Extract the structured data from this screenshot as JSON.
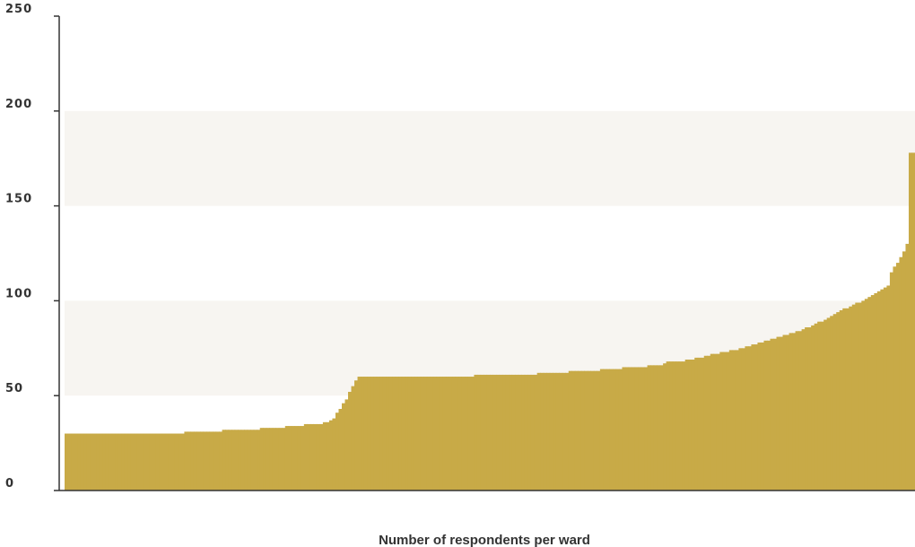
{
  "chart_data": {
    "type": "area",
    "title": "",
    "xlabel": "Number of respondents per ward",
    "ylabel": "",
    "ylim": [
      0,
      250
    ],
    "yticks": [
      "0",
      "50",
      "100",
      "150",
      "200",
      "250"
    ],
    "grid_bands": [
      [
        50,
        100
      ],
      [
        150,
        200
      ]
    ],
    "description_free": true,
    "x_range": [
      1,
      270
    ],
    "series": [
      {
        "sorted_ascending": true,
        "anchors": [
          [
            1,
            30
          ],
          [
            38,
            30
          ],
          [
            40,
            31
          ],
          [
            50,
            31
          ],
          [
            51,
            32
          ],
          [
            62,
            32
          ],
          [
            64,
            33
          ],
          [
            70,
            33
          ],
          [
            72,
            34
          ],
          [
            76,
            34
          ],
          [
            78,
            35
          ],
          [
            82,
            35
          ],
          [
            84,
            36
          ],
          [
            86,
            38
          ],
          [
            88,
            43
          ],
          [
            90,
            48
          ],
          [
            92,
            55
          ],
          [
            94,
            60
          ],
          [
            130,
            60
          ],
          [
            132,
            61
          ],
          [
            150,
            61
          ],
          [
            152,
            62
          ],
          [
            160,
            62
          ],
          [
            162,
            63
          ],
          [
            170,
            63
          ],
          [
            172,
            64
          ],
          [
            177,
            64
          ],
          [
            179,
            65
          ],
          [
            185,
            65
          ],
          [
            187,
            66
          ],
          [
            190,
            66
          ],
          [
            192,
            68
          ],
          [
            197,
            68
          ],
          [
            199,
            69
          ],
          [
            203,
            70
          ],
          [
            207,
            72
          ],
          [
            213,
            74
          ],
          [
            218,
            76
          ],
          [
            222,
            78
          ],
          [
            226,
            80
          ],
          [
            230,
            82
          ],
          [
            234,
            84
          ],
          [
            238,
            87
          ],
          [
            242,
            90
          ],
          [
            246,
            94
          ],
          [
            250,
            97
          ],
          [
            254,
            100
          ],
          [
            258,
            104
          ],
          [
            262,
            108
          ],
          [
            263,
            115
          ],
          [
            265,
            120
          ],
          [
            267,
            126
          ],
          [
            268,
            130
          ],
          [
            269,
            178
          ],
          [
            270,
            178
          ]
        ]
      }
    ],
    "colors": {
      "fill": "#c8aa47",
      "band": "#f7f5f1",
      "axis": "#333333"
    }
  }
}
